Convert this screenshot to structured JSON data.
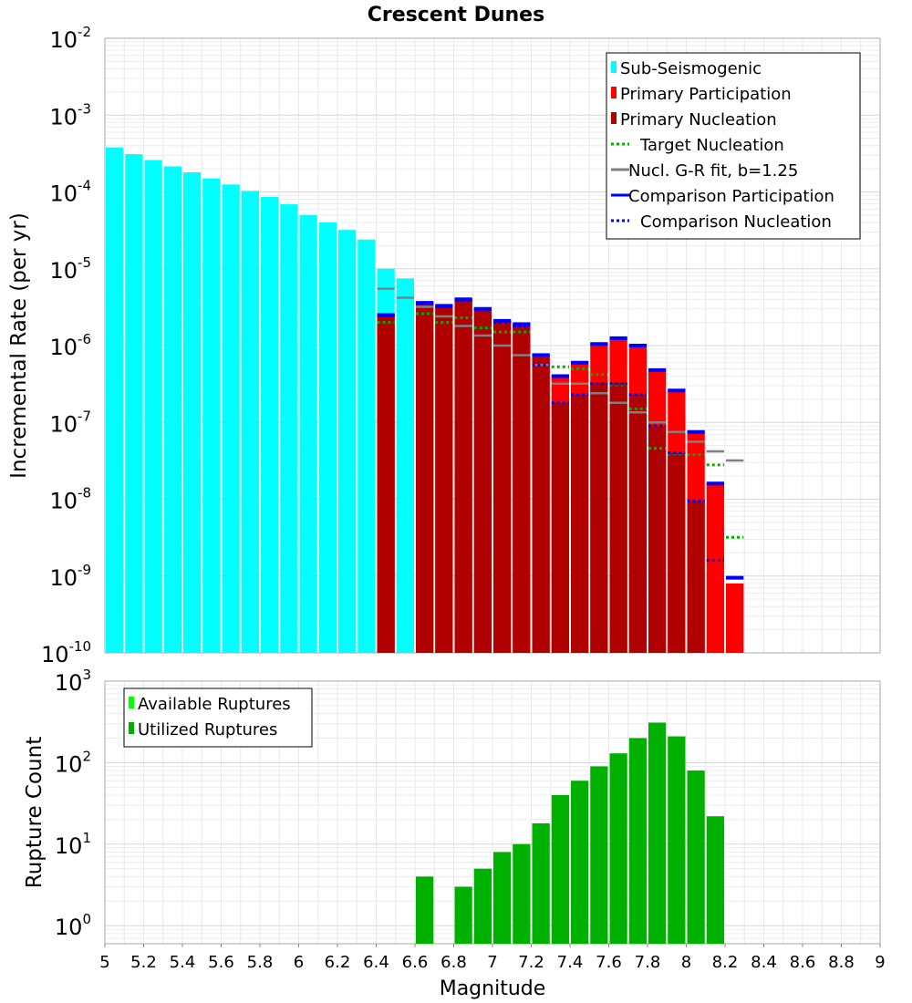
{
  "chart_data": [
    {
      "type": "bar",
      "title": "Crescent Dunes",
      "ylabel": "Incremental Rate (per yr)",
      "y_scale": "log",
      "ylim": [
        1e-10,
        0.01
      ],
      "xlim": [
        5,
        9
      ],
      "grid": true,
      "legend_position": "top-right",
      "y_tick_labels": [
        {
          "base": "10",
          "exp": "-10"
        },
        {
          "base": "10",
          "exp": "-9"
        },
        {
          "base": "10",
          "exp": "-8"
        },
        {
          "base": "10",
          "exp": "-7"
        },
        {
          "base": "10",
          "exp": "-6"
        },
        {
          "base": "10",
          "exp": "-5"
        },
        {
          "base": "10",
          "exp": "-4"
        },
        {
          "base": "10",
          "exp": "-3"
        },
        {
          "base": "10",
          "exp": "-2"
        }
      ],
      "colors": {
        "sub_seismogenic": "#00ffff",
        "primary_participation": "#ff0000",
        "primary_nucleation": "#b00000",
        "target_nucleation": "#00b000",
        "gr_fit": "#808080",
        "comparison_participation": "#0000ff",
        "comparison_nucleation": "#0000ff"
      },
      "legend": [
        {
          "label": "Sub-Seismogenic",
          "kind": "bar",
          "color": "#00ffff"
        },
        {
          "label": "Primary Participation",
          "kind": "bar",
          "color": "#ff0000"
        },
        {
          "label": "Primary Nucleation",
          "kind": "bar",
          "color": "#b00000"
        },
        {
          "label": "Target Nucleation",
          "kind": "dotted",
          "color": "#00b000"
        },
        {
          "label": "Nucl. G-R fit, b=1.25",
          "kind": "solid",
          "color": "#808080"
        },
        {
          "label": "Comparison Participation",
          "kind": "solid",
          "color": "#0000ff"
        },
        {
          "label": "Comparison Nucleation",
          "kind": "dotted",
          "color": "#0000ff"
        }
      ],
      "series": [
        {
          "name": "Sub-Seismogenic",
          "x": [
            5.05,
            5.15,
            5.25,
            5.35,
            5.45,
            5.55,
            5.65,
            5.75,
            5.85,
            5.95,
            6.05,
            6.15,
            6.25,
            6.35,
            6.45,
            6.55
          ],
          "values": [
            0.00038,
            0.00031,
            0.00026,
            0.000215,
            0.00018,
            0.00015,
            0.000125,
            0.000103,
            8.6e-05,
            6.9e-05,
            5e-05,
            4e-05,
            3.2e-05,
            2.4e-05,
            1e-05,
            7.5e-06
          ]
        },
        {
          "name": "Primary Participation",
          "x": [
            6.45,
            6.65,
            6.75,
            6.85,
            6.95,
            7.05,
            7.15,
            7.25,
            7.35,
            7.45,
            7.55,
            7.65,
            7.75,
            7.85,
            7.95,
            8.05,
            8.15,
            8.25
          ],
          "values": [
            2.5e-06,
            3.6e-06,
            3.3e-06,
            4e-06,
            3e-06,
            2.1e-06,
            1.9e-06,
            7.5e-07,
            4e-07,
            6e-07,
            1.05e-06,
            1.25e-06,
            1e-06,
            4.8e-07,
            2.6e-07,
            7.5e-08,
            1.6e-08,
            8e-10
          ]
        },
        {
          "name": "Primary Nucleation",
          "x": [
            6.45,
            6.65,
            6.75,
            6.85,
            6.95,
            7.05,
            7.15,
            7.25,
            7.35,
            7.45,
            7.55,
            7.65,
            7.75,
            7.85,
            7.95,
            8.05
          ],
          "values": [
            2.5e-06,
            3.5e-06,
            3.2e-06,
            3.9e-06,
            3e-06,
            2e-06,
            1.8e-06,
            7e-07,
            1.8e-07,
            2.3e-07,
            3.3e-07,
            3.3e-07,
            2.3e-07,
            9e-08,
            4e-08,
            9.5e-09
          ]
        },
        {
          "name": "Target Nucleation",
          "x": [
            6.45,
            6.65,
            6.75,
            6.85,
            6.95,
            7.05,
            7.15,
            7.25,
            7.35,
            7.45,
            7.55,
            7.65,
            7.75,
            7.85,
            7.95,
            8.05,
            8.15,
            8.25
          ],
          "values": [
            2e-06,
            2.6e-06,
            2e-06,
            2.3e-06,
            1.7e-06,
            1.5e-06,
            1.5e-06,
            7.5e-07,
            5.3e-07,
            5e-07,
            4.2e-07,
            3.1e-07,
            1.5e-07,
            4.6e-08,
            3.9e-08,
            3.8e-08,
            2.8e-08,
            3.2e-09
          ]
        },
        {
          "name": "Nucl. G-R fit, b=1.25",
          "x": [
            6.45,
            6.55,
            6.65,
            6.75,
            6.85,
            6.95,
            7.05,
            7.15,
            7.25,
            7.35,
            7.45,
            7.55,
            7.65,
            7.75,
            7.85,
            7.95,
            8.05,
            8.15,
            8.25
          ],
          "values": [
            5.5e-06,
            4.2e-06,
            3.2e-06,
            2.4e-06,
            1.8e-06,
            1.35e-06,
            1e-06,
            7.5e-07,
            5.6e-07,
            3.2e-07,
            3.2e-07,
            2.4e-07,
            1.8e-07,
            1.35e-07,
            1e-07,
            7.5e-08,
            5.6e-08,
            4.2e-08,
            3.2e-08
          ]
        },
        {
          "name": "Comparison Participation",
          "x": [
            6.45,
            6.65,
            6.75,
            6.85,
            6.95,
            7.05,
            7.15,
            7.25,
            7.35,
            7.45,
            7.55,
            7.65,
            7.75,
            7.85,
            7.95,
            8.05,
            8.15,
            8.25
          ],
          "values": [
            2.5e-06,
            3.6e-06,
            3.3e-06,
            4e-06,
            3e-06,
            2.1e-06,
            1.9e-06,
            7.5e-07,
            4e-07,
            6e-07,
            1.05e-06,
            1.25e-06,
            1e-06,
            4.8e-07,
            2.6e-07,
            7.5e-08,
            1.6e-08,
            9.5e-10
          ]
        },
        {
          "name": "Comparison Nucleation",
          "x": [
            6.45,
            6.65,
            6.75,
            6.85,
            6.95,
            7.05,
            7.15,
            7.25,
            7.35,
            7.45,
            7.55,
            7.65,
            7.75,
            7.85,
            7.95,
            8.05,
            8.15
          ],
          "values": [
            2.5e-06,
            3.5e-06,
            3.2e-06,
            3.9e-06,
            3e-06,
            2e-06,
            1.8e-06,
            5.6e-07,
            1.8e-07,
            2.3e-07,
            3.2e-07,
            3.2e-07,
            2.3e-07,
            9e-08,
            4e-08,
            9.5e-09,
            1.6e-09
          ]
        }
      ]
    },
    {
      "type": "bar",
      "xlabel": "Magnitude",
      "ylabel": "Rupture Count",
      "y_scale": "log",
      "ylim": [
        0.6,
        1000
      ],
      "xlim": [
        5,
        9
      ],
      "grid": true,
      "legend_position": "top-left",
      "x_ticks": [
        "5",
        "5.2",
        "5.4",
        "5.6",
        "5.8",
        "6",
        "6.2",
        "6.4",
        "6.6",
        "6.8",
        "7",
        "7.2",
        "7.4",
        "7.6",
        "7.8",
        "8",
        "8.2",
        "8.4",
        "8.6",
        "8.8",
        "9"
      ],
      "y_tick_labels": [
        {
          "base": "10",
          "exp": "0"
        },
        {
          "base": "10",
          "exp": "1"
        },
        {
          "base": "10",
          "exp": "2"
        },
        {
          "base": "10",
          "exp": "3"
        }
      ],
      "colors": {
        "available_ruptures": "#00ff00",
        "utilized_ruptures": "#00b000"
      },
      "legend": [
        {
          "label": "Available Ruptures",
          "kind": "bar",
          "color": "#00ff00"
        },
        {
          "label": "Utilized Ruptures",
          "kind": "bar",
          "color": "#00b000"
        }
      ],
      "series": [
        {
          "name": "Utilized Ruptures",
          "x": [
            6.65,
            6.85,
            6.95,
            7.05,
            7.15,
            7.25,
            7.35,
            7.45,
            7.55,
            7.65,
            7.75,
            7.85,
            7.95,
            8.05,
            8.15
          ],
          "values": [
            4,
            3,
            5,
            8,
            10,
            18,
            40,
            60,
            90,
            130,
            200,
            310,
            210,
            80,
            22
          ]
        }
      ]
    }
  ]
}
